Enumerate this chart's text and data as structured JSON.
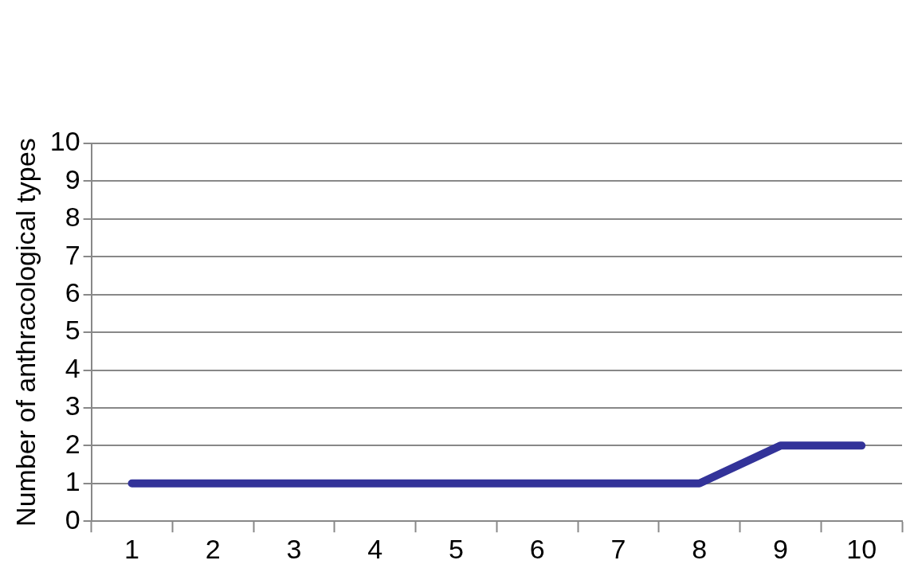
{
  "chart_data": {
    "type": "line",
    "ylabel": "Number of anthracological types",
    "categories": [
      "1",
      "2",
      "3",
      "4",
      "5",
      "6",
      "7",
      "8",
      "9",
      "10"
    ],
    "series": [
      {
        "color": "#333399",
        "values": [
          1,
          1,
          1,
          1,
          1,
          1,
          1,
          1,
          2,
          2
        ]
      }
    ],
    "ylim": [
      0,
      10
    ],
    "yticks": [
      0,
      1,
      2,
      3,
      4,
      5,
      6,
      7,
      8,
      9,
      10
    ],
    "grid": "y",
    "legend": false,
    "marker": "none",
    "line_style": "solid"
  }
}
